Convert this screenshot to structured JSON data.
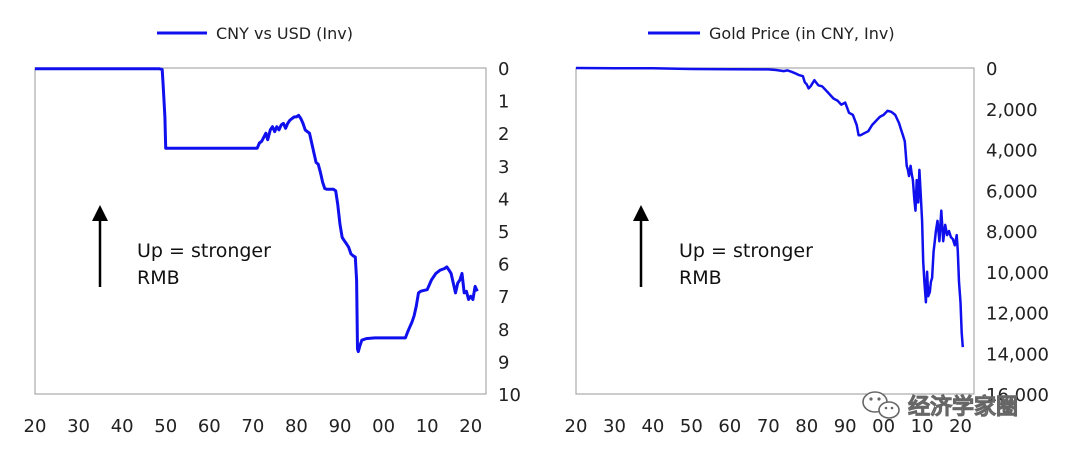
{
  "watermark": {
    "text": "经济学家圈",
    "icon": "wechat-icon"
  },
  "colors": {
    "line": "#1010ee",
    "axis": "#9a9a9a",
    "text": "#222222"
  },
  "chart_data": [
    {
      "type": "line",
      "legend": "CNY vs USD (Inv)",
      "x_ticks": [
        "20",
        "30",
        "40",
        "50",
        "60",
        "70",
        "80",
        "90",
        "00",
        "10",
        "20"
      ],
      "y_ticks": [
        "0",
        "1",
        "2",
        "3",
        "4",
        "5",
        "6",
        "7",
        "8",
        "9",
        "10"
      ],
      "y_inverted": true,
      "xlim": [
        1920,
        2023.5
      ],
      "ylim": [
        0,
        10
      ],
      "annotation": {
        "line1": "Up = stronger",
        "line2": "RMB"
      },
      "series": [
        {
          "x": [
            1920,
            1948.5,
            1949.2,
            1949.4,
            1949.8,
            1950,
            1955,
            1960,
            1965,
            1971,
            1971.5,
            1972,
            1972.6,
            1973,
            1973.4,
            1974,
            1974.5,
            1975,
            1975.5,
            1976,
            1976.5,
            1977,
            1977.5,
            1978,
            1978.5,
            1979,
            1979.5,
            1980,
            1980.5,
            1981,
            1981.5,
            1982,
            1982.5,
            1983,
            1983.5,
            1984,
            1984.5,
            1985,
            1985.5,
            1986,
            1986.5,
            1987,
            1987.5,
            1988,
            1988.5,
            1989,
            1989.5,
            1990,
            1990.5,
            1991,
            1991.5,
            1992,
            1992.5,
            1993,
            1993.5,
            1993.8,
            1994,
            1994.2,
            1994.6,
            1995,
            1996,
            1997,
            1998,
            1999,
            2000,
            2001,
            2002,
            2003,
            2004,
            2005,
            2005.5,
            2006,
            2006.5,
            2007,
            2007.5,
            2008,
            2008.5,
            2009,
            2010,
            2011,
            2012,
            2013,
            2014,
            2014.5,
            2015,
            2015.5,
            2016,
            2016.5,
            2017,
            2017.5,
            2018,
            2018.5,
            2019,
            2019.5,
            2020,
            2020.5,
            2021,
            2021.5
          ],
          "y": [
            0.02,
            0.02,
            0.05,
            0.5,
            1.5,
            2.46,
            2.46,
            2.46,
            2.46,
            2.46,
            2.3,
            2.25,
            2.1,
            2.0,
            2.2,
            1.9,
            1.8,
            1.95,
            1.8,
            1.9,
            1.75,
            1.7,
            1.85,
            1.7,
            1.6,
            1.55,
            1.5,
            1.5,
            1.45,
            1.55,
            1.7,
            1.9,
            1.95,
            2.0,
            2.3,
            2.6,
            2.9,
            2.95,
            3.2,
            3.5,
            3.7,
            3.72,
            3.72,
            3.72,
            3.72,
            3.77,
            4.2,
            4.8,
            5.2,
            5.3,
            5.4,
            5.5,
            5.7,
            5.76,
            5.8,
            6.5,
            8.62,
            8.7,
            8.5,
            8.35,
            8.3,
            8.29,
            8.28,
            8.28,
            8.28,
            8.28,
            8.28,
            8.28,
            8.28,
            8.28,
            8.1,
            7.95,
            7.8,
            7.6,
            7.3,
            6.9,
            6.85,
            6.83,
            6.8,
            6.5,
            6.3,
            6.2,
            6.15,
            6.1,
            6.2,
            6.3,
            6.6,
            6.9,
            6.6,
            6.5,
            6.3,
            6.9,
            6.85,
            7.1,
            7.0,
            7.1,
            6.7,
            6.85
          ]
        }
      ]
    },
    {
      "type": "line",
      "legend": "Gold Price (in CNY, Inv)",
      "x_ticks": [
        "20",
        "30",
        "40",
        "50",
        "60",
        "70",
        "80",
        "90",
        "00",
        "10",
        "20"
      ],
      "y_ticks": [
        "0",
        "2,000",
        "4,000",
        "6,000",
        "8,000",
        "10,000",
        "12,000",
        "14,000",
        "16,000"
      ],
      "y_inverted": true,
      "xlim": [
        1920,
        2023.5
      ],
      "ylim": [
        0,
        16000
      ],
      "annotation": {
        "line1": "Up = stronger",
        "line2": "RMB"
      },
      "series": [
        {
          "x": [
            1920,
            1930,
            1940,
            1950,
            1960,
            1970,
            1972,
            1974,
            1975,
            1976,
            1977,
            1978,
            1979,
            1979.5,
            1980,
            1980.5,
            1981,
            1982,
            1983,
            1984,
            1985,
            1986,
            1987,
            1988,
            1989,
            1990,
            1991,
            1992,
            1993,
            1993.5,
            1994,
            1995,
            1996,
            1997,
            1998,
            1999,
            2000,
            2001,
            2002,
            2003,
            2004,
            2004.5,
            2005,
            2005.5,
            2006,
            2006.3,
            2006.6,
            2007,
            2007.3,
            2007.6,
            2008,
            2008.3,
            2008.6,
            2009,
            2009.3,
            2009.6,
            2010,
            2010.3,
            2010.6,
            2011,
            2011.3,
            2011.6,
            2012,
            2012.3,
            2012.6,
            2013,
            2013.3,
            2013.6,
            2014,
            2014.5,
            2015,
            2015.5,
            2016,
            2016.5,
            2017,
            2017.5,
            2018,
            2018.5,
            2019,
            2019.3,
            2019.6,
            2020,
            2020.3,
            2020.6
          ],
          "y": [
            0,
            10,
            10,
            50,
            60,
            70,
            100,
            150,
            120,
            180,
            260,
            350,
            400,
            700,
            800,
            1000,
            900,
            600,
            850,
            900,
            1100,
            1300,
            1500,
            1600,
            1800,
            1700,
            2200,
            2300,
            2800,
            3300,
            3300,
            3200,
            3100,
            2800,
            2600,
            2400,
            2300,
            2100,
            2150,
            2300,
            2700,
            3000,
            3300,
            3600,
            4800,
            5000,
            5300,
            4800,
            5200,
            5500,
            6500,
            7000,
            5500,
            6600,
            5000,
            6000,
            7500,
            9500,
            10500,
            11500,
            10000,
            11200,
            11000,
            10500,
            10300,
            9000,
            8500,
            8000,
            7500,
            8500,
            7000,
            8500,
            7700,
            8200,
            8000,
            8300,
            8400,
            8700,
            8200,
            9000,
            10500,
            11500,
            13000,
            13700
          ]
        }
      ]
    }
  ]
}
